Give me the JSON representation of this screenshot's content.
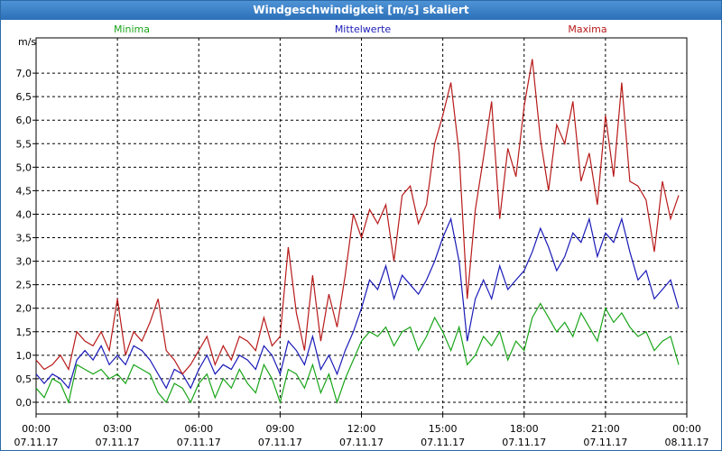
{
  "window": {
    "title": "Windgeschwindigkeit [m/s] skaliert"
  },
  "chart_data": {
    "type": "line",
    "title": "Windgeschwindigkeit [m/s] skaliert",
    "ylabel": "m/s",
    "ylim": [
      -0.25,
      7.75
    ],
    "xlim": [
      0,
      24
    ],
    "yticks": [
      "0,0",
      "0,5",
      "1,0",
      "1,5",
      "2,0",
      "2,5",
      "3,0",
      "3,5",
      "4,0",
      "4,5",
      "5,0",
      "5,5",
      "6,0",
      "6,5",
      "7,0"
    ],
    "ytick_values": [
      0,
      0.5,
      1,
      1.5,
      2,
      2.5,
      3,
      3.5,
      4,
      4.5,
      5,
      5.5,
      6,
      6.5,
      7
    ],
    "xticks": [
      {
        "time": "00:00",
        "date": "07.11.17",
        "h": 0
      },
      {
        "time": "03:00",
        "date": "07.11.17",
        "h": 3
      },
      {
        "time": "06:00",
        "date": "07.11.17",
        "h": 6
      },
      {
        "time": "09:00",
        "date": "07.11.17",
        "h": 9
      },
      {
        "time": "12:00",
        "date": "07.11.17",
        "h": 12
      },
      {
        "time": "15:00",
        "date": "07.11.17",
        "h": 15
      },
      {
        "time": "18:00",
        "date": "07.11.17",
        "h": 18
      },
      {
        "time": "21:00",
        "date": "07.11.17",
        "h": 21
      },
      {
        "time": "00:00",
        "date": "08.11.17",
        "h": 24
      }
    ],
    "series": [
      {
        "name": "Minima",
        "color": "#1aa51a",
        "x": [
          0,
          0.3,
          0.6,
          0.9,
          1.2,
          1.5,
          1.8,
          2.1,
          2.4,
          2.7,
          3.0,
          3.3,
          3.6,
          3.9,
          4.2,
          4.5,
          4.8,
          5.1,
          5.4,
          5.7,
          6.0,
          6.3,
          6.6,
          6.9,
          7.2,
          7.5,
          7.8,
          8.1,
          8.4,
          8.7,
          9.0,
          9.3,
          9.6,
          9.9,
          10.2,
          10.5,
          10.8,
          11.1,
          11.4,
          11.7,
          12.0,
          12.3,
          12.6,
          12.9,
          13.2,
          13.5,
          13.8,
          14.1,
          14.4,
          14.7,
          15.0,
          15.3,
          15.6,
          15.9,
          16.2,
          16.5,
          16.8,
          17.1,
          17.4,
          17.7,
          18.0,
          18.3,
          18.6,
          18.9,
          19.2,
          19.5,
          19.8,
          20.1,
          20.4,
          20.7,
          21.0,
          21.3,
          21.6,
          21.9,
          22.2,
          22.5,
          22.8,
          23.1,
          23.4,
          23.7
        ],
        "values": [
          0.3,
          0.1,
          0.5,
          0.4,
          0.0,
          0.8,
          0.7,
          0.6,
          0.7,
          0.5,
          0.6,
          0.4,
          0.8,
          0.7,
          0.6,
          0.2,
          0.0,
          0.4,
          0.3,
          0.0,
          0.4,
          0.6,
          0.1,
          0.5,
          0.3,
          0.7,
          0.4,
          0.2,
          0.8,
          0.5,
          0.0,
          0.7,
          0.6,
          0.3,
          0.8,
          0.2,
          0.6,
          0.0,
          0.5,
          0.9,
          1.3,
          1.5,
          1.4,
          1.6,
          1.2,
          1.5,
          1.6,
          1.1,
          1.4,
          1.8,
          1.5,
          1.1,
          1.6,
          0.8,
          1.0,
          1.4,
          1.2,
          1.5,
          0.9,
          1.3,
          1.1,
          1.8,
          2.1,
          1.8,
          1.5,
          1.7,
          1.4,
          1.9,
          1.6,
          1.3,
          2.0,
          1.7,
          1.9,
          1.6,
          1.4,
          1.5,
          1.1,
          1.3,
          1.4,
          0.8
        ]
      },
      {
        "name": "Mittelwerte",
        "color": "#1a1ab8",
        "x": [
          0,
          0.3,
          0.6,
          0.9,
          1.2,
          1.5,
          1.8,
          2.1,
          2.4,
          2.7,
          3.0,
          3.3,
          3.6,
          3.9,
          4.2,
          4.5,
          4.8,
          5.1,
          5.4,
          5.7,
          6.0,
          6.3,
          6.6,
          6.9,
          7.2,
          7.5,
          7.8,
          8.1,
          8.4,
          8.7,
          9.0,
          9.3,
          9.6,
          9.9,
          10.2,
          10.5,
          10.8,
          11.1,
          11.4,
          11.7,
          12.0,
          12.3,
          12.6,
          12.9,
          13.2,
          13.5,
          13.8,
          14.1,
          14.4,
          14.7,
          15.0,
          15.3,
          15.6,
          15.9,
          16.2,
          16.5,
          16.8,
          17.1,
          17.4,
          17.7,
          18.0,
          18.3,
          18.6,
          18.9,
          19.2,
          19.5,
          19.8,
          20.1,
          20.4,
          20.7,
          21.0,
          21.3,
          21.6,
          21.9,
          22.2,
          22.5,
          22.8,
          23.1,
          23.4,
          23.7
        ],
        "values": [
          0.6,
          0.4,
          0.6,
          0.5,
          0.3,
          0.9,
          1.1,
          0.9,
          1.2,
          0.8,
          1.0,
          0.8,
          1.2,
          1.1,
          0.9,
          0.6,
          0.3,
          0.7,
          0.6,
          0.3,
          0.7,
          1.0,
          0.6,
          0.8,
          0.7,
          1.0,
          0.9,
          0.7,
          1.2,
          1.0,
          0.6,
          1.3,
          1.1,
          0.8,
          1.4,
          0.7,
          1.0,
          0.6,
          1.1,
          1.5,
          2.0,
          2.6,
          2.4,
          2.9,
          2.2,
          2.7,
          2.5,
          2.3,
          2.6,
          3.0,
          3.5,
          3.9,
          3.0,
          1.3,
          2.2,
          2.6,
          2.2,
          2.9,
          2.4,
          2.6,
          2.8,
          3.2,
          3.7,
          3.3,
          2.8,
          3.1,
          3.6,
          3.4,
          3.9,
          3.1,
          3.6,
          3.4,
          3.9,
          3.2,
          2.6,
          2.8,
          2.2,
          2.4,
          2.6,
          2.0
        ]
      },
      {
        "name": "Maxima",
        "color": "#b81a1a",
        "x": [
          0,
          0.3,
          0.6,
          0.9,
          1.2,
          1.5,
          1.8,
          2.1,
          2.4,
          2.7,
          3.0,
          3.3,
          3.6,
          3.9,
          4.2,
          4.5,
          4.8,
          5.1,
          5.4,
          5.7,
          6.0,
          6.3,
          6.6,
          6.9,
          7.2,
          7.5,
          7.8,
          8.1,
          8.4,
          8.7,
          9.0,
          9.3,
          9.6,
          9.9,
          10.2,
          10.5,
          10.8,
          11.1,
          11.4,
          11.7,
          12.0,
          12.3,
          12.6,
          12.9,
          13.2,
          13.5,
          13.8,
          14.1,
          14.4,
          14.7,
          15.0,
          15.3,
          15.6,
          15.9,
          16.2,
          16.5,
          16.8,
          17.1,
          17.4,
          17.7,
          18.0,
          18.3,
          18.6,
          18.9,
          19.2,
          19.5,
          19.8,
          20.1,
          20.4,
          20.7,
          21.0,
          21.3,
          21.6,
          21.9,
          22.2,
          22.5,
          22.8,
          23.1,
          23.4,
          23.7
        ],
        "values": [
          0.9,
          0.7,
          0.8,
          1.0,
          0.7,
          1.5,
          1.3,
          1.2,
          1.5,
          1.1,
          2.2,
          1.0,
          1.5,
          1.3,
          1.7,
          2.2,
          1.1,
          0.9,
          0.6,
          0.8,
          1.1,
          1.4,
          0.8,
          1.2,
          0.9,
          1.4,
          1.3,
          1.1,
          1.8,
          1.2,
          1.4,
          3.3,
          1.9,
          1.1,
          2.7,
          1.3,
          2.3,
          1.6,
          2.7,
          4.0,
          3.5,
          4.1,
          3.8,
          4.2,
          3.0,
          4.4,
          4.6,
          3.8,
          4.2,
          5.5,
          6.1,
          6.8,
          5.3,
          2.2,
          4.1,
          5.2,
          6.4,
          3.9,
          5.4,
          4.8,
          6.3,
          7.3,
          5.6,
          4.5,
          5.9,
          5.5,
          6.4,
          4.7,
          5.3,
          4.2,
          6.1,
          4.8,
          6.8,
          4.7,
          4.6,
          4.3,
          3.2,
          4.7,
          3.9,
          4.4
        ]
      }
    ]
  }
}
